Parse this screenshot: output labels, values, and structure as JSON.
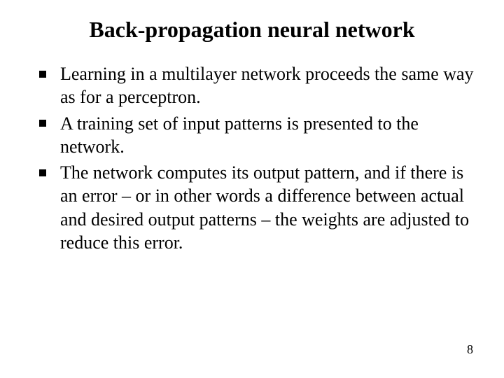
{
  "title": "Back-propagation neural network",
  "title_fontsize": 32,
  "body_fontsize": 26,
  "pagenum_fontsize": 18,
  "text_color": "#000000",
  "background_color": "#ffffff",
  "bullets": [
    "Learning in a multilayer network proceeds the same way as for a perceptron.",
    "A training set of input patterns is presented to the network.",
    "The network computes its output pattern, and if there is an error – or in other words a difference between actual and desired output patterns – the weights are adjusted to reduce this error."
  ],
  "page_number": "8"
}
